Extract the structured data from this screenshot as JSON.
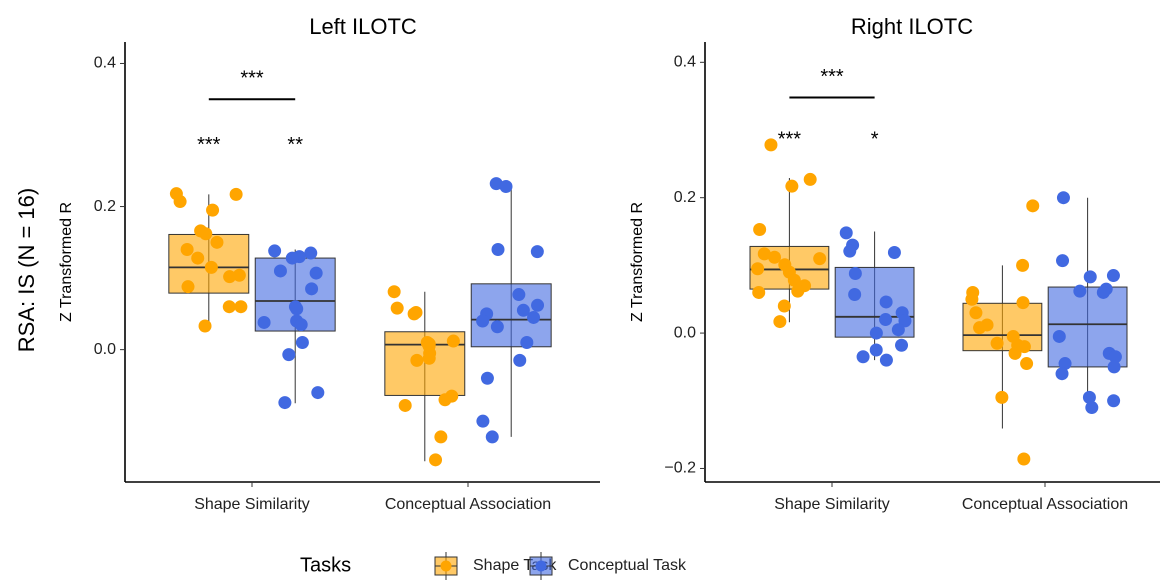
{
  "figure_label": "RSA: IS (N = 16)",
  "legend": {
    "title": "Tasks",
    "entries": [
      {
        "name": "Shape Task",
        "color": "#FFA500"
      },
      {
        "name": "Conceptual Task",
        "color": "#4169E1"
      }
    ]
  },
  "chart_data": [
    {
      "type": "box",
      "title": "Left ILOTC",
      "y_label": "Z Transformed R",
      "categories": [
        "Shape Similarity",
        "Conceptual Association"
      ],
      "ylim": [
        -0.185,
        0.43
      ],
      "yticks": [
        {
          "value": 0,
          "label": "0.0"
        },
        0.2,
        0.4
      ],
      "series": [
        {
          "boxes": [
            {
              "whisker_low": 0.033,
              "q1": 0.079,
              "median": 0.115,
              "q3": 0.161,
              "whisker_high": 0.217
            },
            {
              "whisker_low": -0.156,
              "q1": -0.064,
              "median": 0.007,
              "q3": 0.025,
              "whisker_high": 0.081
            }
          ],
          "points": [
            [
              0.218,
              0.217,
              0.207,
              0.195,
              0.166,
              0.162,
              0.15,
              0.14,
              0.128,
              0.115,
              0.104,
              0.102,
              0.088,
              0.06,
              0.06,
              0.033
            ],
            [
              0.081,
              0.058,
              0.052,
              0.05,
              0.012,
              0.01,
              0.008,
              0.005,
              -0.005,
              -0.012,
              -0.015,
              -0.065,
              -0.07,
              -0.078,
              -0.122,
              -0.154
            ]
          ]
        },
        {
          "boxes": [
            {
              "whisker_low": -0.075,
              "q1": 0.026,
              "median": 0.068,
              "q3": 0.128,
              "whisker_high": 0.14
            },
            {
              "whisker_low": -0.122,
              "q1": 0.004,
              "median": 0.042,
              "q3": 0.092,
              "whisker_high": 0.232
            }
          ],
          "points": [
            [
              0.138,
              0.135,
              0.13,
              0.128,
              0.11,
              0.107,
              0.085,
              0.06,
              0.057,
              0.04,
              0.038,
              0.035,
              0.01,
              -0.007,
              -0.06,
              -0.074
            ],
            [
              0.232,
              0.228,
              0.14,
              0.137,
              0.077,
              0.062,
              0.055,
              0.05,
              0.045,
              0.04,
              0.032,
              0.01,
              -0.015,
              -0.04,
              -0.1,
              -0.122
            ]
          ]
        }
      ],
      "annotations": [
        {
          "label": "***",
          "y": 0.35,
          "category": 0,
          "series": [
            0,
            1
          ]
        },
        {
          "label": "***",
          "y": 0.285,
          "category": 0,
          "series": [
            0
          ]
        },
        {
          "label": "**",
          "y": 0.285,
          "category": 0,
          "series": [
            1
          ]
        }
      ]
    },
    {
      "type": "box",
      "title": "Right ILOTC",
      "y_label": "Z Transformed R",
      "categories": [
        "Shape Similarity",
        "Conceptual Association"
      ],
      "ylim": [
        -0.22,
        0.43
      ],
      "yticks": [
        {
          "value": -0.2,
          "label": "−0.2"
        },
        {
          "value": 0,
          "label": "0.0"
        },
        0.2,
        0.4
      ],
      "series": [
        {
          "boxes": [
            {
              "whisker_low": 0.016,
              "q1": 0.065,
              "median": 0.094,
              "q3": 0.128,
              "whisker_high": 0.229
            },
            {
              "whisker_low": -0.141,
              "q1": -0.026,
              "median": -0.003,
              "q3": 0.044,
              "whisker_high": 0.1
            }
          ],
          "points": [
            [
              0.278,
              0.227,
              0.217,
              0.153,
              0.117,
              0.112,
              0.11,
              0.101,
              0.095,
              0.09,
              0.078,
              0.07,
              0.062,
              0.06,
              0.04,
              0.017
            ],
            [
              0.188,
              0.1,
              0.06,
              0.05,
              0.045,
              0.03,
              0.012,
              0.008,
              -0.005,
              -0.015,
              -0.018,
              -0.02,
              -0.03,
              -0.045,
              -0.095,
              -0.186
            ]
          ]
        },
        {
          "boxes": [
            {
              "whisker_low": -0.04,
              "q1": -0.006,
              "median": 0.024,
              "q3": 0.097,
              "whisker_high": 0.15
            },
            {
              "whisker_low": -0.11,
              "q1": -0.05,
              "median": 0.013,
              "q3": 0.068,
              "whisker_high": 0.2
            }
          ],
          "points": [
            [
              0.148,
              0.13,
              0.121,
              0.119,
              0.088,
              0.057,
              0.046,
              0.03,
              0.02,
              0.018,
              0.005,
              0.0,
              -0.018,
              -0.025,
              -0.035,
              -0.04
            ],
            [
              0.2,
              0.107,
              0.085,
              0.083,
              0.065,
              0.062,
              0.06,
              -0.005,
              -0.03,
              -0.035,
              -0.045,
              -0.05,
              -0.06,
              -0.095,
              -0.1,
              -0.11
            ]
          ]
        }
      ],
      "annotations": [
        {
          "label": "***",
          "y": 0.348,
          "category": 0,
          "series": [
            0,
            1
          ]
        },
        {
          "label": "***",
          "y": 0.285,
          "category": 0,
          "series": [
            0
          ]
        },
        {
          "label": "*",
          "y": 0.285,
          "category": 0,
          "series": [
            1
          ]
        }
      ]
    }
  ]
}
